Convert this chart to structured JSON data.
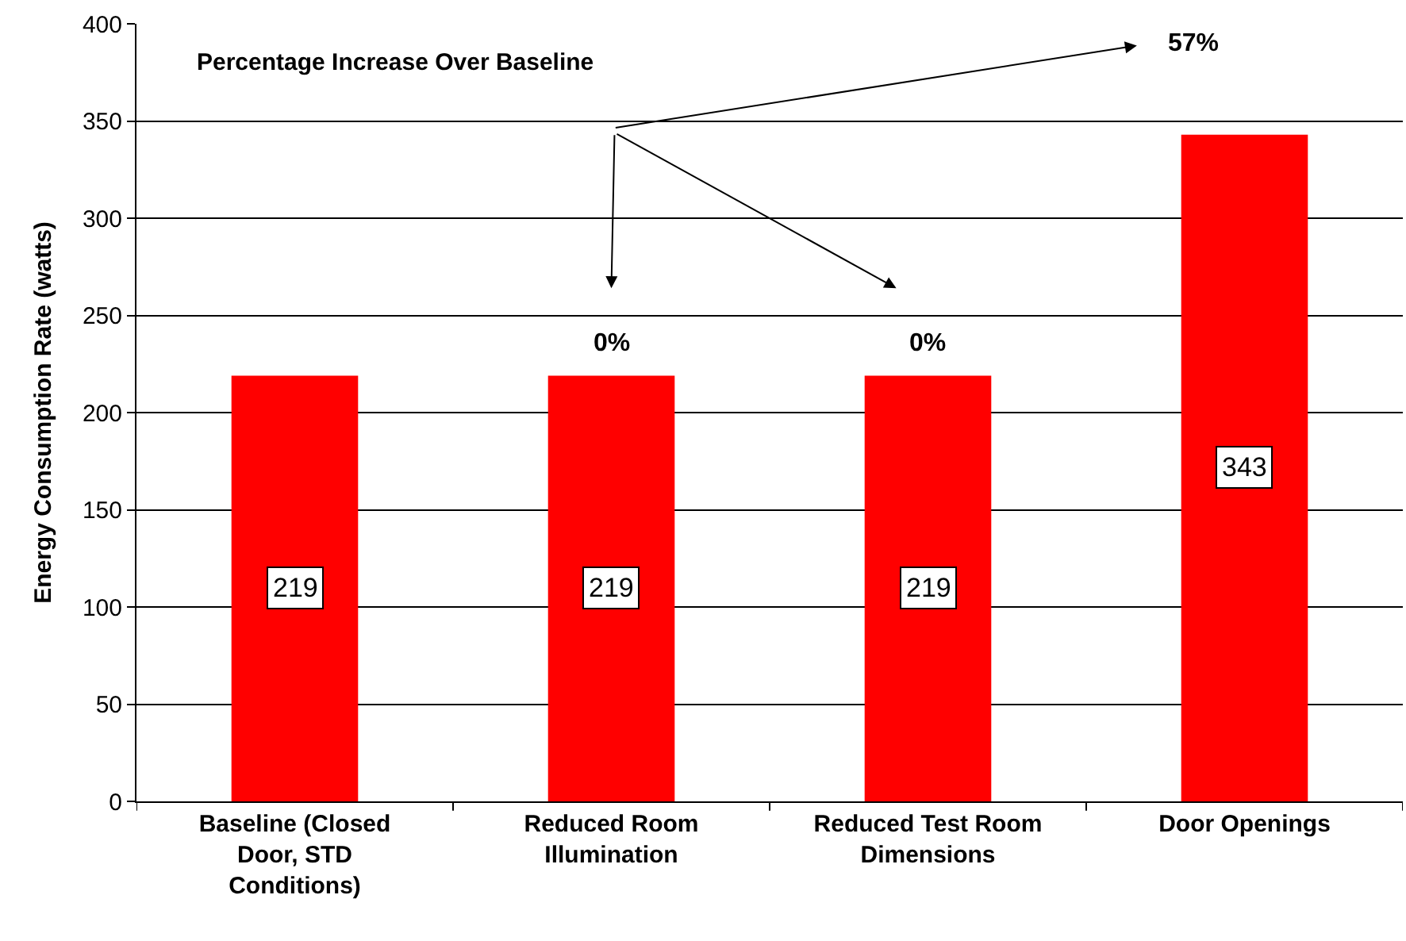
{
  "chart_data": {
    "type": "bar",
    "ylabel": "Energy Consumption Rate (watts)",
    "categories": [
      "Baseline (Closed Door, STD Conditions)",
      "Reduced Room Illumination",
      "Reduced Test Room Dimensions",
      "Door Openings"
    ],
    "values": [
      219,
      219,
      219,
      343
    ],
    "color": "#ff0000",
    "ylim": [
      0,
      400
    ],
    "yticks": [
      0,
      50,
      100,
      150,
      200,
      250,
      300,
      350,
      400
    ],
    "grid": "y",
    "data_labels": true,
    "annotations": [
      "Percentage Increase Over Baseline",
      {
        "text": "0%",
        "x": "Reduced Room Illumination",
        "y": 219
      },
      {
        "text": "0%",
        "x": "Reduced Test Room Dimensions",
        "y": 219
      },
      "57%"
    ]
  }
}
